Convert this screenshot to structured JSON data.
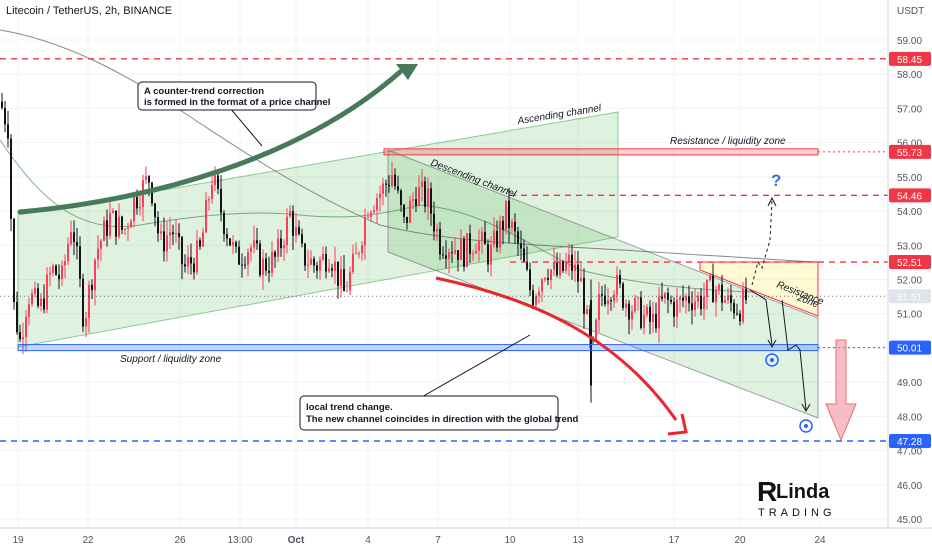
{
  "header": {
    "title": "Litecoin / TetherUS, 2h, BINANCE",
    "currency": "USDT"
  },
  "chart_data": {
    "type": "candlestick",
    "title": "Litecoin / TetherUS, 2h, BINANCE",
    "ylabel": "USDT",
    "ylim": [
      44.8,
      59.8
    ],
    "y_ticks": [
      45.0,
      46.0,
      47.0,
      48.0,
      49.0,
      50.0,
      51.0,
      52.0,
      53.0,
      54.0,
      55.0,
      56.0,
      57.0,
      58.0,
      59.0
    ],
    "x_ticks": [
      "19",
      "22",
      "26",
      "13:00",
      "Oct",
      "4",
      "7",
      "10",
      "13",
      "17",
      "20",
      "24"
    ],
    "price_levels": [
      {
        "label": "58.45",
        "value": 58.45,
        "color": "#f23645",
        "style": "dashed"
      },
      {
        "label": "55.73",
        "value": 55.73,
        "color": "#f23645",
        "style": "zone"
      },
      {
        "label": "54.46",
        "value": 54.46,
        "color": "#f23645",
        "style": "dashed"
      },
      {
        "label": "52.51",
        "value": 52.51,
        "color": "#f23645",
        "style": "dashed"
      },
      {
        "label": "51.51",
        "value": 51.51,
        "color": "#131722",
        "style": "dotted"
      },
      {
        "label": "50.01",
        "value": 50.01,
        "color": "#2962ff",
        "style": "zone"
      },
      {
        "label": "47.28",
        "value": 47.28,
        "color": "#2962ff",
        "style": "dashed"
      }
    ],
    "annotations": {
      "ascending_channel": "Ascending channel",
      "descending_channel": "Descending channel",
      "resistance_zone": "Resistance / liquidity zone",
      "support_zone": "Support / liquidity zone",
      "resistance_box_line1": "Resistance",
      "resistance_box_line2": "zone",
      "question": "?",
      "callout1_line1": "A counter-trend correction",
      "callout1_line2": "is formed in the format of a price channel",
      "callout2_line1": "local trend change.",
      "callout2_line2": "The new channel coincides in direction with the global trend"
    },
    "candle_path_anchors": [
      [
        0,
        57.2
      ],
      [
        8,
        56.5
      ],
      [
        14,
        51.2
      ],
      [
        20,
        50.2
      ],
      [
        28,
        51.6
      ],
      [
        40,
        51.1
      ],
      [
        52,
        52.3
      ],
      [
        62,
        52.0
      ],
      [
        72,
        53.8
      ],
      [
        84,
        50.8
      ],
      [
        96,
        52.8
      ],
      [
        110,
        53.8
      ],
      [
        124,
        53.4
      ],
      [
        134,
        54.3
      ],
      [
        150,
        55.0
      ],
      [
        160,
        53.0
      ],
      [
        172,
        53.5
      ],
      [
        184,
        52.3
      ],
      [
        200,
        52.8
      ],
      [
        212,
        55.0
      ],
      [
        224,
        53.7
      ],
      [
        236,
        52.6
      ],
      [
        250,
        53.0
      ],
      [
        262,
        52.4
      ],
      [
        276,
        52.6
      ],
      [
        290,
        53.9
      ],
      [
        302,
        52.7
      ],
      [
        316,
        52.4
      ],
      [
        330,
        52.8
      ],
      [
        344,
        51.6
      ],
      [
        356,
        52.6
      ],
      [
        368,
        54.2
      ],
      [
        382,
        54.6
      ],
      [
        392,
        55.1
      ],
      [
        404,
        53.6
      ],
      [
        416,
        54.6
      ],
      [
        428,
        54.3
      ],
      [
        440,
        53.1
      ],
      [
        452,
        53.0
      ],
      [
        464,
        52.8
      ],
      [
        476,
        53.2
      ],
      [
        490,
        52.7
      ],
      [
        506,
        53.9
      ],
      [
        518,
        53.0
      ],
      [
        532,
        51.5
      ],
      [
        546,
        52.4
      ],
      [
        558,
        52.1
      ],
      [
        570,
        52.5
      ],
      [
        582,
        51.8
      ],
      [
        592,
        49.6
      ],
      [
        600,
        51.5
      ],
      [
        614,
        51.9
      ],
      [
        628,
        51.3
      ],
      [
        640,
        51.0
      ],
      [
        652,
        50.7
      ],
      [
        664,
        51.4
      ],
      [
        676,
        51.2
      ],
      [
        688,
        51.5
      ],
      [
        700,
        51.4
      ],
      [
        714,
        51.8
      ],
      [
        728,
        51.3
      ],
      [
        740,
        51.2
      ],
      [
        748,
        51.5
      ]
    ],
    "brand": {
      "line1": "Linda",
      "line2": "TRADING"
    },
    "colors": {
      "up": "#ff3d5a",
      "down": "#14131c",
      "channel_fill": "#4caf50",
      "support": "#2962ff",
      "resistance": "#f23645",
      "big_arrow_up": "#467a5a",
      "big_arrow_down": "#e8262c"
    }
  }
}
